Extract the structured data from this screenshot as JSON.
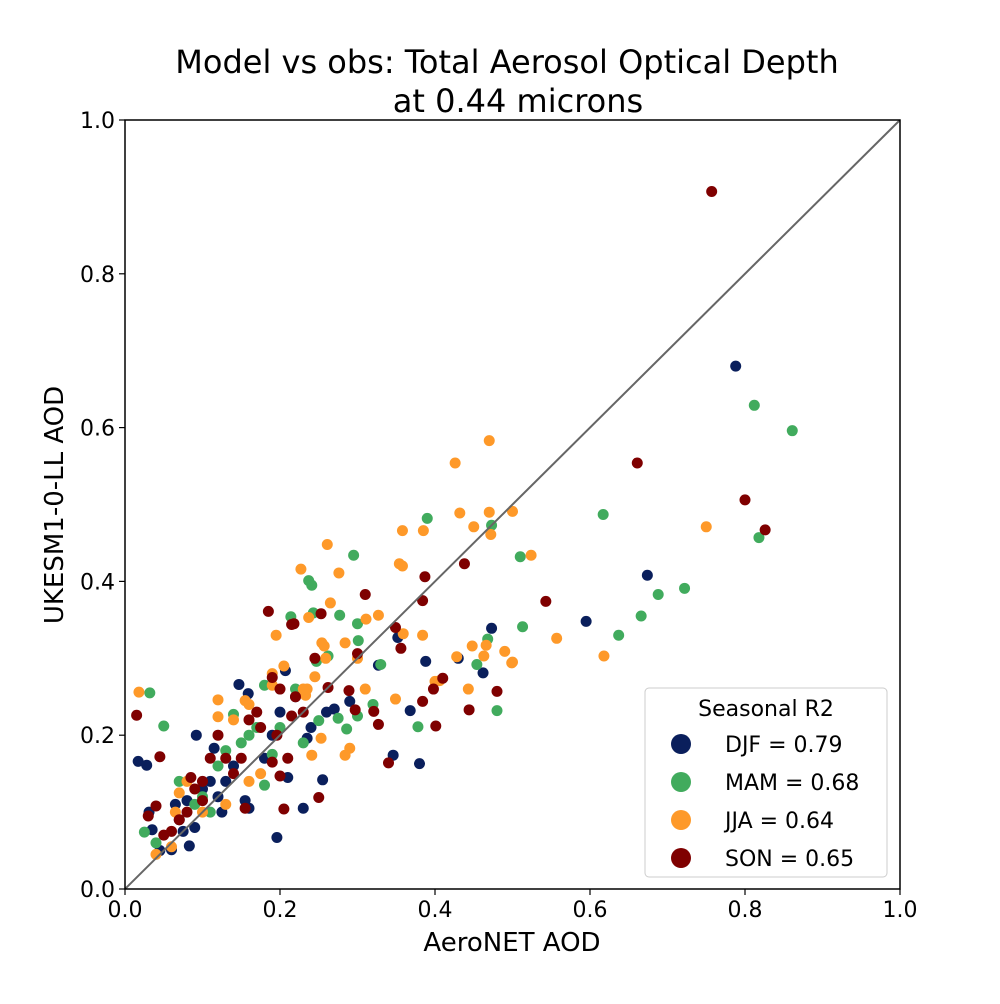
{
  "chart_data": {
    "type": "scatter",
    "title_lines": [
      "Model vs obs: Total Aerosol Optical Depth",
      "at 0.44 microns"
    ],
    "xlabel": "AeroNET AOD",
    "ylabel": "UKESM1-0-LL AOD",
    "xlim": [
      0,
      1
    ],
    "ylim": [
      0,
      1
    ],
    "xticks": [
      "0.0",
      "0.2",
      "0.4",
      "0.6",
      "0.8",
      "1.0"
    ],
    "yticks": [
      "0.0",
      "0.2",
      "0.4",
      "0.6",
      "0.8",
      "1.0"
    ],
    "grid": false,
    "reference_line": "1:1",
    "reference_line_color": "#666666",
    "legend": {
      "title": "Seasonal R2",
      "placement": "lower-right"
    },
    "series": [
      {
        "name": "DJF = 0.79",
        "color": "#0a1f5c",
        "points": [
          [
            0.788,
            0.68
          ],
          [
            0.674,
            0.408
          ],
          [
            0.595,
            0.348
          ],
          [
            0.473,
            0.339
          ],
          [
            0.462,
            0.281
          ],
          [
            0.388,
            0.296
          ],
          [
            0.368,
            0.232
          ],
          [
            0.352,
            0.327
          ],
          [
            0.327,
            0.291
          ],
          [
            0.38,
            0.163
          ],
          [
            0.346,
            0.174
          ],
          [
            0.255,
            0.142
          ],
          [
            0.235,
            0.196
          ],
          [
            0.23,
            0.105
          ],
          [
            0.196,
            0.067
          ],
          [
            0.207,
            0.284
          ],
          [
            0.159,
            0.254
          ],
          [
            0.147,
            0.266
          ],
          [
            0.092,
            0.2
          ],
          [
            0.017,
            0.166
          ],
          [
            0.028,
            0.161
          ],
          [
            0.083,
            0.056
          ],
          [
            0.045,
            0.05
          ],
          [
            0.06,
            0.051
          ],
          [
            0.035,
            0.077
          ],
          [
            0.031,
            0.1
          ],
          [
            0.07,
            0.09
          ],
          [
            0.08,
            0.115
          ],
          [
            0.09,
            0.08
          ],
          [
            0.1,
            0.13
          ],
          [
            0.11,
            0.14
          ],
          [
            0.12,
            0.12
          ],
          [
            0.125,
            0.1
          ],
          [
            0.13,
            0.14
          ],
          [
            0.14,
            0.16
          ],
          [
            0.155,
            0.115
          ],
          [
            0.16,
            0.105
          ],
          [
            0.18,
            0.17
          ],
          [
            0.19,
            0.2
          ],
          [
            0.2,
            0.23
          ],
          [
            0.21,
            0.145
          ],
          [
            0.22,
            0.25
          ],
          [
            0.24,
            0.21
          ],
          [
            0.26,
            0.23
          ],
          [
            0.27,
            0.234
          ],
          [
            0.29,
            0.244
          ],
          [
            0.43,
            0.3
          ],
          [
            0.075,
            0.075
          ],
          [
            0.115,
            0.183
          ],
          [
            0.065,
            0.11
          ]
        ]
      },
      {
        "name": "MAM = 0.68",
        "color": "#41ab5d",
        "points": [
          [
            0.861,
            0.596
          ],
          [
            0.812,
            0.629
          ],
          [
            0.818,
            0.457
          ],
          [
            0.722,
            0.391
          ],
          [
            0.688,
            0.383
          ],
          [
            0.666,
            0.355
          ],
          [
            0.637,
            0.33
          ],
          [
            0.617,
            0.487
          ],
          [
            0.513,
            0.341
          ],
          [
            0.51,
            0.432
          ],
          [
            0.48,
            0.232
          ],
          [
            0.473,
            0.473
          ],
          [
            0.468,
            0.325
          ],
          [
            0.454,
            0.292
          ],
          [
            0.39,
            0.482
          ],
          [
            0.378,
            0.211
          ],
          [
            0.295,
            0.434
          ],
          [
            0.3,
            0.345
          ],
          [
            0.301,
            0.323
          ],
          [
            0.33,
            0.292
          ],
          [
            0.277,
            0.356
          ],
          [
            0.241,
            0.395
          ],
          [
            0.237,
            0.401
          ],
          [
            0.243,
            0.359
          ],
          [
            0.214,
            0.354
          ],
          [
            0.247,
            0.296
          ],
          [
            0.262,
            0.303
          ],
          [
            0.286,
            0.208
          ],
          [
            0.275,
            0.222
          ],
          [
            0.3,
            0.225
          ],
          [
            0.25,
            0.219
          ],
          [
            0.23,
            0.19
          ],
          [
            0.22,
            0.26
          ],
          [
            0.18,
            0.265
          ],
          [
            0.19,
            0.175
          ],
          [
            0.17,
            0.21
          ],
          [
            0.16,
            0.2
          ],
          [
            0.15,
            0.19
          ],
          [
            0.14,
            0.227
          ],
          [
            0.13,
            0.18
          ],
          [
            0.12,
            0.16
          ],
          [
            0.1,
            0.12
          ],
          [
            0.09,
            0.11
          ],
          [
            0.07,
            0.14
          ],
          [
            0.05,
            0.212
          ],
          [
            0.032,
            0.255
          ],
          [
            0.025,
            0.074
          ],
          [
            0.04,
            0.06
          ],
          [
            0.11,
            0.1
          ],
          [
            0.18,
            0.135
          ],
          [
            0.2,
            0.21
          ],
          [
            0.32,
            0.24
          ]
        ]
      },
      {
        "name": "JJA = 0.64",
        "color": "#fe9929",
        "points": [
          [
            0.75,
            0.471
          ],
          [
            0.618,
            0.303
          ],
          [
            0.557,
            0.326
          ],
          [
            0.524,
            0.434
          ],
          [
            0.5,
            0.491
          ],
          [
            0.499,
            0.294
          ],
          [
            0.49,
            0.309
          ],
          [
            0.47,
            0.583
          ],
          [
            0.47,
            0.49
          ],
          [
            0.472,
            0.461
          ],
          [
            0.426,
            0.554
          ],
          [
            0.432,
            0.489
          ],
          [
            0.45,
            0.471
          ],
          [
            0.466,
            0.317
          ],
          [
            0.463,
            0.303
          ],
          [
            0.448,
            0.316
          ],
          [
            0.443,
            0.26
          ],
          [
            0.428,
            0.302
          ],
          [
            0.406,
            0.271
          ],
          [
            0.385,
            0.466
          ],
          [
            0.358,
            0.466
          ],
          [
            0.354,
            0.423
          ],
          [
            0.358,
            0.42
          ],
          [
            0.359,
            0.332
          ],
          [
            0.384,
            0.33
          ],
          [
            0.349,
            0.247
          ],
          [
            0.327,
            0.356
          ],
          [
            0.311,
            0.351
          ],
          [
            0.261,
            0.448
          ],
          [
            0.265,
            0.372
          ],
          [
            0.276,
            0.411
          ],
          [
            0.227,
            0.416
          ],
          [
            0.237,
            0.353
          ],
          [
            0.254,
            0.32
          ],
          [
            0.257,
            0.316
          ],
          [
            0.259,
            0.3
          ],
          [
            0.284,
            0.32
          ],
          [
            0.29,
            0.183
          ],
          [
            0.284,
            0.174
          ],
          [
            0.253,
            0.196
          ],
          [
            0.241,
            0.174
          ],
          [
            0.233,
            0.252
          ],
          [
            0.235,
            0.26
          ],
          [
            0.245,
            0.276
          ],
          [
            0.23,
            0.26
          ],
          [
            0.195,
            0.33
          ],
          [
            0.205,
            0.29
          ],
          [
            0.19,
            0.28
          ],
          [
            0.19,
            0.265
          ],
          [
            0.155,
            0.245
          ],
          [
            0.16,
            0.24
          ],
          [
            0.12,
            0.246
          ],
          [
            0.12,
            0.224
          ],
          [
            0.14,
            0.22
          ],
          [
            0.175,
            0.15
          ],
          [
            0.16,
            0.14
          ],
          [
            0.13,
            0.11
          ],
          [
            0.1,
            0.1
          ],
          [
            0.08,
            0.14
          ],
          [
            0.07,
            0.125
          ],
          [
            0.06,
            0.055
          ],
          [
            0.04,
            0.045
          ],
          [
            0.018,
            0.256
          ],
          [
            0.065,
            0.1
          ],
          [
            0.3,
            0.3
          ],
          [
            0.31,
            0.26
          ],
          [
            0.4,
            0.27
          ],
          [
            0.5,
            0.295
          ]
        ]
      },
      {
        "name": "SON = 0.65",
        "color": "#7f0000",
        "points": [
          [
            0.757,
            0.907
          ],
          [
            0.661,
            0.554
          ],
          [
            0.8,
            0.506
          ],
          [
            0.826,
            0.467
          ],
          [
            0.543,
            0.374
          ],
          [
            0.48,
            0.257
          ],
          [
            0.444,
            0.233
          ],
          [
            0.438,
            0.423
          ],
          [
            0.41,
            0.274
          ],
          [
            0.398,
            0.26
          ],
          [
            0.387,
            0.406
          ],
          [
            0.384,
            0.375
          ],
          [
            0.384,
            0.244
          ],
          [
            0.401,
            0.212
          ],
          [
            0.356,
            0.313
          ],
          [
            0.349,
            0.34
          ],
          [
            0.34,
            0.164
          ],
          [
            0.327,
            0.214
          ],
          [
            0.321,
            0.231
          ],
          [
            0.31,
            0.383
          ],
          [
            0.3,
            0.306
          ],
          [
            0.297,
            0.233
          ],
          [
            0.289,
            0.258
          ],
          [
            0.262,
            0.262
          ],
          [
            0.253,
            0.358
          ],
          [
            0.25,
            0.119
          ],
          [
            0.245,
            0.3
          ],
          [
            0.215,
            0.344
          ],
          [
            0.218,
            0.345
          ],
          [
            0.2,
            0.147
          ],
          [
            0.205,
            0.104
          ],
          [
            0.196,
            0.2
          ],
          [
            0.185,
            0.361
          ],
          [
            0.19,
            0.275
          ],
          [
            0.2,
            0.26
          ],
          [
            0.215,
            0.225
          ],
          [
            0.22,
            0.25
          ],
          [
            0.23,
            0.23
          ],
          [
            0.21,
            0.17
          ],
          [
            0.19,
            0.165
          ],
          [
            0.17,
            0.23
          ],
          [
            0.175,
            0.21
          ],
          [
            0.16,
            0.22
          ],
          [
            0.15,
            0.17
          ],
          [
            0.14,
            0.15
          ],
          [
            0.13,
            0.17
          ],
          [
            0.12,
            0.2
          ],
          [
            0.11,
            0.17
          ],
          [
            0.1,
            0.14
          ],
          [
            0.09,
            0.13
          ],
          [
            0.085,
            0.145
          ],
          [
            0.08,
            0.1
          ],
          [
            0.07,
            0.09
          ],
          [
            0.06,
            0.075
          ],
          [
            0.05,
            0.07
          ],
          [
            0.04,
            0.108
          ],
          [
            0.045,
            0.172
          ],
          [
            0.03,
            0.095
          ],
          [
            0.015,
            0.226
          ],
          [
            0.1,
            0.115
          ],
          [
            0.155,
            0.105
          ]
        ]
      }
    ]
  }
}
